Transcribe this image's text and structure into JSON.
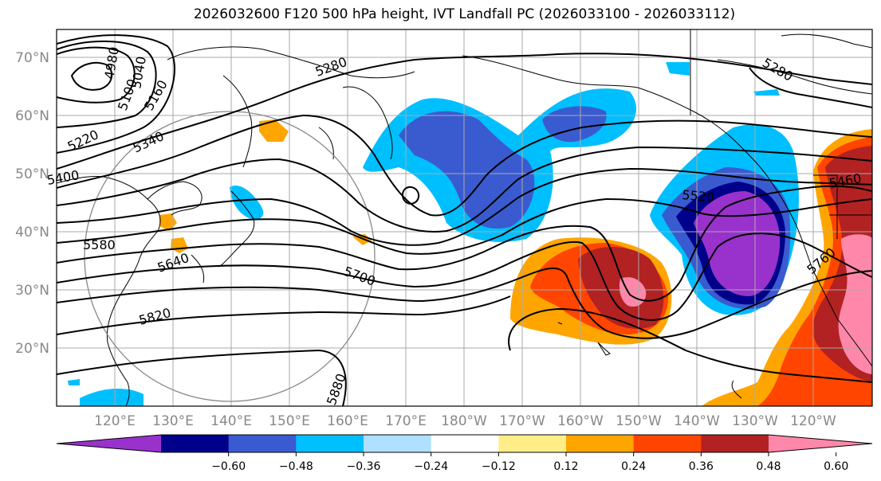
{
  "title": "2026032600 F120 500 hPa height, IVT Landfall PC (2026033100 - 2026033112)",
  "lat_labels": [
    "70°N",
    "60°N",
    "50°N",
    "40°N",
    "30°N",
    "20°N"
  ],
  "lon_labels": [
    "120°E",
    "130°E",
    "140°E",
    "150°E",
    "160°E",
    "170°E",
    "180°W",
    "170°W",
    "160°W",
    "150°W",
    "140°W",
    "130°W",
    "120°W"
  ],
  "contour_labels": [
    "4980",
    "5040",
    "5100",
    "5160",
    "5220",
    "5280",
    "5340",
    "5400",
    "5460",
    "5520",
    "5580",
    "5640",
    "5700",
    "5760",
    "5820",
    "5880"
  ],
  "colorbar": {
    "colors": [
      "#9932cc",
      "#00008b",
      "#3a5bd0",
      "#00bfff",
      "#b0e0ff",
      "#ffffff",
      "#ffee88",
      "#ffa500",
      "#ff4500",
      "#b22222",
      "#ff88aa"
    ],
    "ticks": [
      "−0.60",
      "−0.48",
      "−0.36",
      "−0.24",
      "−0.12",
      "0.12",
      "0.24",
      "0.36",
      "0.48",
      "0.60"
    ]
  }
}
